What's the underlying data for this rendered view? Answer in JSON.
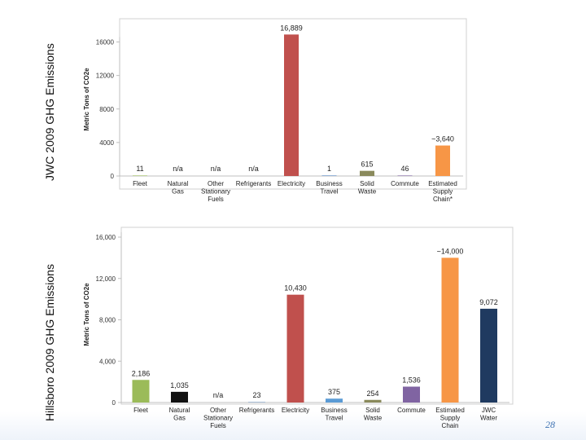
{
  "page_number": "28",
  "chart_data": [
    {
      "type": "bar",
      "title": "JWC 2009 GHG Emissions",
      "ylabel": "Metric Tons of CO2e",
      "xlabel": "",
      "ylim": [
        0,
        18000
      ],
      "yticks": [
        0,
        4000,
        8000,
        12000,
        16000
      ],
      "ytick_labels": [
        "0",
        "4000",
        "8000",
        "12000",
        "16000"
      ],
      "grid": false,
      "categories": [
        [
          "Fleet"
        ],
        [
          "Natural",
          "Gas"
        ],
        [
          "Other",
          "Stationary",
          "Fuels"
        ],
        [
          "Refrigerants"
        ],
        [
          "Electricity"
        ],
        [
          "Business",
          "Travel"
        ],
        [
          "Solid",
          "Waste"
        ],
        [
          "Commute"
        ],
        [
          "Estimated",
          "Supply",
          "Chain*"
        ]
      ],
      "values": [
        11,
        null,
        null,
        null,
        16889,
        1,
        615,
        46,
        3640
      ],
      "labels": [
        "11",
        "n/a",
        "n/a",
        "n/a",
        "16,889",
        "1",
        "615",
        "46",
        "~3,640"
      ],
      "colors": [
        "#9bbb59",
        "#222222",
        "#888888",
        "#6e8fb8",
        "#c0504d",
        "#4f81bd",
        "#8a8a5c",
        "#8064a2",
        "#f79646"
      ]
    },
    {
      "type": "bar",
      "title": "Hillsboro 2009 GHG Emissions",
      "ylabel": "Metric Tons of CO2e",
      "xlabel": "",
      "ylim": [
        0,
        16000
      ],
      "yticks": [
        0,
        4000,
        8000,
        12000,
        16000
      ],
      "ytick_labels": [
        "0",
        "4,000",
        "8,000",
        "12,000",
        "16,000"
      ],
      "grid": false,
      "categories": [
        [
          "Fleet"
        ],
        [
          "Natural",
          "Gas"
        ],
        [
          "Other",
          "Stationary",
          "Fuels"
        ],
        [
          "Refrigerants"
        ],
        [
          "Electricity"
        ],
        [
          "Business",
          "Travel"
        ],
        [
          "Solid",
          "Waste"
        ],
        [
          "Commute"
        ],
        [
          "Estimated",
          "Supply",
          "Chain"
        ],
        [
          "JWC",
          "Water"
        ]
      ],
      "values": [
        2186,
        1035,
        null,
        23,
        10430,
        375,
        254,
        1536,
        14000,
        9072
      ],
      "labels": [
        "2,186",
        "1,035",
        "n/a",
        "23",
        "10,430",
        "375",
        "254",
        "1,536",
        "~14,000",
        "9,072"
      ],
      "colors": [
        "#9bbb59",
        "#111111",
        "#888888",
        "#6e8fb8",
        "#c0504d",
        "#5b9bd5",
        "#8a8a5c",
        "#8064a2",
        "#f79646",
        "#1f3a60"
      ]
    }
  ]
}
